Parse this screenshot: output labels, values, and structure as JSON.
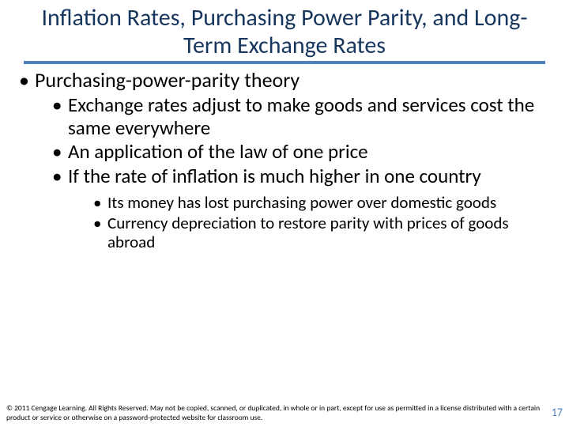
{
  "title": "Inflation Rates, Purchasing Power Parity, and Long-Term Exchange Rates",
  "colors": {
    "title_text": "#17365d",
    "accent_rule": "#4f81bd",
    "body_text": "#000000",
    "pagenum": "#4f81bd",
    "background": "#ffffff"
  },
  "bullets": {
    "l1_1": "Purchasing-power-parity theory",
    "l2_1": "Exchange rates adjust to make goods and services cost the same everywhere",
    "l2_2": "An application of the law of one price",
    "l2_3": "If the rate of inflation is much higher in one country",
    "l3_1": "Its money has lost purchasing power over domestic goods",
    "l3_2": "Currency depreciation to restore parity with prices of goods abroad"
  },
  "footer": "© 2011 Cengage Learning. All Rights Reserved. May not be copied, scanned, or duplicated, in whole or in part, except for use as permitted in a license distributed with a certain product or service or otherwise on a password-protected website for classroom use.",
  "page_number": "17"
}
